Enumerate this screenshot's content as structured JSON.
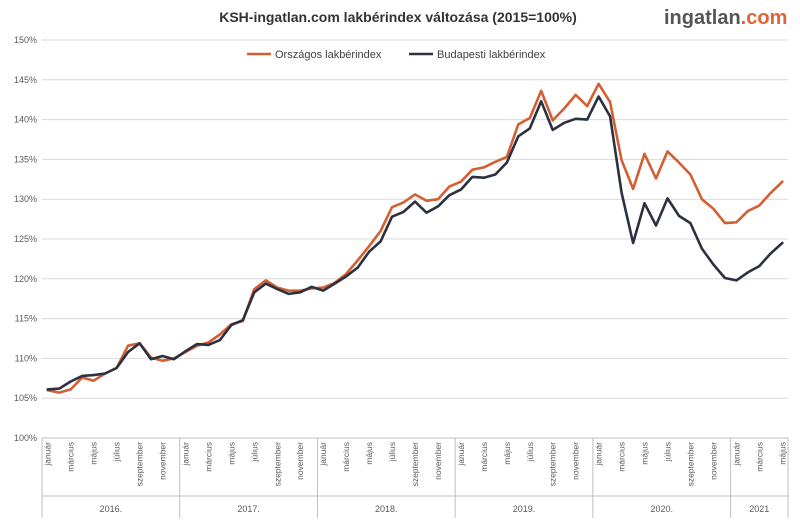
{
  "chart_data": {
    "type": "line",
    "title": "KSH-ingatlan.com lakbérindex változása (2015=100%)",
    "logo": {
      "part1": "ingatlan",
      "part2": ".com"
    },
    "ylim": [
      100,
      150
    ],
    "y_ticks": [
      "100%",
      "105%",
      "110%",
      "115%",
      "120%",
      "125%",
      "130%",
      "135%",
      "140%",
      "145%",
      "150%"
    ],
    "grid": true,
    "legend_position": "top-center",
    "month_labels": [
      "január",
      "március",
      "május",
      "július",
      "szeptember",
      "november"
    ],
    "years": [
      "2016.",
      "2017.",
      "2018.",
      "2019.",
      "2020.",
      "2021"
    ],
    "x": [
      "2016-01",
      "2016-02",
      "2016-03",
      "2016-04",
      "2016-05",
      "2016-06",
      "2016-07",
      "2016-08",
      "2016-09",
      "2016-10",
      "2016-11",
      "2016-12",
      "2017-01",
      "2017-02",
      "2017-03",
      "2017-04",
      "2017-05",
      "2017-06",
      "2017-07",
      "2017-08",
      "2017-09",
      "2017-10",
      "2017-11",
      "2017-12",
      "2018-01",
      "2018-02",
      "2018-03",
      "2018-04",
      "2018-05",
      "2018-06",
      "2018-07",
      "2018-08",
      "2018-09",
      "2018-10",
      "2018-11",
      "2018-12",
      "2019-01",
      "2019-02",
      "2019-03",
      "2019-04",
      "2019-05",
      "2019-06",
      "2019-07",
      "2019-08",
      "2019-09",
      "2019-10",
      "2019-11",
      "2019-12",
      "2020-01",
      "2020-02",
      "2020-03",
      "2020-04",
      "2020-05",
      "2020-06",
      "2020-07",
      "2020-08",
      "2020-09",
      "2020-10",
      "2020-11",
      "2020-12",
      "2021-01",
      "2021-02",
      "2021-03",
      "2021-04",
      "2021-05"
    ],
    "series": [
      {
        "name": "Országos lakbérindex",
        "color": "#d35f32",
        "values": [
          106.0,
          105.7,
          106.1,
          107.6,
          107.2,
          108.1,
          108.8,
          111.6,
          111.9,
          110.1,
          109.7,
          110.0,
          110.8,
          111.6,
          112.0,
          113.0,
          114.3,
          114.7,
          118.7,
          119.8,
          118.9,
          118.5,
          118.5,
          118.8,
          118.9,
          119.5,
          120.6,
          122.3,
          124.1,
          126.0,
          129.0,
          129.6,
          130.6,
          129.8,
          130.0,
          131.6,
          132.2,
          133.7,
          134.0,
          134.7,
          135.3,
          139.4,
          140.2,
          143.6,
          139.9,
          141.4,
          143.1,
          141.7,
          144.5,
          142.2,
          134.9,
          131.3,
          135.7,
          132.6,
          136.0,
          134.6,
          133.1,
          130.0,
          128.8,
          127.0,
          127.1,
          128.5,
          129.2,
          130.8,
          132.2
        ]
      },
      {
        "name": "Budapesti lakbérindex",
        "color": "#2b3140",
        "values": [
          106.1,
          106.2,
          107.1,
          107.8,
          107.9,
          108.1,
          108.8,
          110.8,
          111.9,
          109.9,
          110.3,
          109.9,
          110.9,
          111.8,
          111.7,
          112.3,
          114.2,
          114.8,
          118.3,
          119.4,
          118.7,
          118.1,
          118.3,
          119.0,
          118.5,
          119.4,
          120.3,
          121.4,
          123.4,
          124.7,
          127.8,
          128.4,
          129.7,
          128.3,
          129.1,
          130.5,
          131.2,
          132.8,
          132.7,
          133.1,
          134.6,
          137.9,
          138.9,
          142.3,
          138.7,
          139.6,
          140.1,
          140.0,
          142.9,
          140.4,
          130.8,
          124.5,
          129.5,
          126.7,
          130.1,
          127.9,
          127.0,
          123.8,
          121.8,
          120.1,
          119.8,
          120.8,
          121.6,
          123.2,
          124.5
        ]
      }
    ]
  }
}
